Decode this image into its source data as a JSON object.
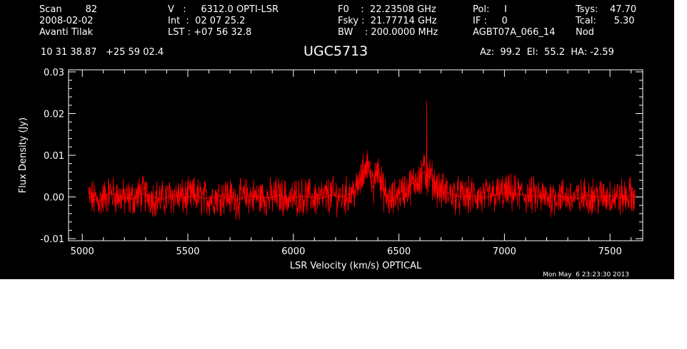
{
  "header": {
    "row1": {
      "scan": "Scan        82",
      "velocity": "V   :     6312.0 OPTI-LSR",
      "f0": "F0    :  22.23508 GHz",
      "pol": "Pol:     I",
      "tsys": "Tsys:    47.70"
    },
    "row2": {
      "date": "2008-02-02",
      "int": "Int  :  02 07 25.2",
      "fsky": "Fsky :  21.77714 GHz",
      "if": "IF :     0",
      "tcal": "Tcal:      5.30"
    },
    "row3": {
      "observer": "Avanti Tilak",
      "lst": "LST : +07 56 32.8",
      "bw": "BW    : 200.0000 MHz",
      "project": "AGBT07A_066_14",
      "mode": "Nod"
    },
    "coords": "10 31 38.87   +25 59 02.4",
    "source": "UGC5713",
    "pointing": "Az:  99.2  El:  55.2  HA: -2.59"
  },
  "timestamp": "Mon May  6 23:23:30 2013",
  "colors": {
    "background": "#000000",
    "axes": "#ffffff",
    "spectrum": "#ff0000"
  },
  "chart_data": {
    "type": "line",
    "xlabel": "LSR Velocity (km/s) OPTICAL",
    "ylabel": "Flux Density (Jy)",
    "xlim": [
      4935,
      7655
    ],
    "ylim": [
      -0.0105,
      0.0305
    ],
    "xticks": [
      5000,
      5500,
      6000,
      6500,
      7000,
      7500
    ],
    "xtick_labels": [
      "5000",
      "5500",
      "6000",
      "6500",
      "7000",
      "7500"
    ],
    "yticks": [
      -0.01,
      0.0,
      0.01,
      0.02,
      0.03
    ],
    "ytick_labels": [
      "-0.01",
      "0.00",
      "0.01",
      "0.02",
      "0.03"
    ],
    "grid": false,
    "series": [
      {
        "color": "#ff0000",
        "x": [
          5030,
          5080,
          5130,
          5180,
          5230,
          5280,
          5330,
          5380,
          5430,
          5480,
          5530,
          5580,
          5630,
          5680,
          5730,
          5780,
          5830,
          5880,
          5930,
          5980,
          6030,
          6080,
          6130,
          6180,
          6230,
          6280,
          6300,
          6320,
          6340,
          6350,
          6360,
          6370,
          6380,
          6390,
          6400,
          6410,
          6420,
          6440,
          6460,
          6480,
          6500,
          6520,
          6540,
          6560,
          6580,
          6600,
          6620,
          6640,
          6660,
          6680,
          6700,
          6730,
          6760,
          6800,
          6850,
          6900,
          6950,
          7000,
          7050,
          7100,
          7150,
          7200,
          7250,
          7300,
          7350,
          7400,
          7450,
          7500,
          7550,
          7600,
          7620
        ],
        "y": [
          0.0,
          -0.001,
          0.001,
          0.0,
          -0.0005,
          0.0008,
          0.0,
          -0.0006,
          0.0005,
          -0.0003,
          0.0004,
          -0.0004,
          0.0,
          0.0006,
          -0.0008,
          0.0003,
          0.0,
          -0.0002,
          0.0004,
          -0.0005,
          0.0002,
          0.0,
          -0.0004,
          0.0005,
          0.0,
          0.001,
          0.002,
          0.004,
          0.007,
          0.009,
          0.006,
          0.003,
          0.002,
          0.006,
          0.008,
          0.005,
          0.002,
          0.0,
          -0.001,
          0.0,
          0.001,
          0.0015,
          0.002,
          0.003,
          0.004,
          0.005,
          0.006,
          0.005,
          0.004,
          0.0025,
          0.0015,
          0.001,
          0.0005,
          0.0,
          0.0003,
          -0.0002,
          0.0004,
          0.001,
          0.0008,
          0.0004,
          0.0002,
          -0.0003,
          0.0003,
          0.0,
          -0.0004,
          0.0005,
          0.0,
          0.0003,
          -0.0002,
          0.0004,
          0.0
        ]
      }
    ]
  }
}
